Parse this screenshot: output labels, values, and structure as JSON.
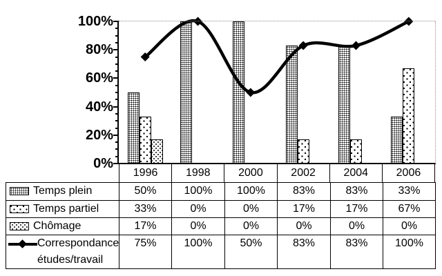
{
  "chart_data": {
    "type": "bar",
    "subtype": "combo-bar-line",
    "title": "",
    "xlabel": "",
    "ylabel": "",
    "categories": [
      "1996",
      "1998",
      "2000",
      "2002",
      "2004",
      "2006"
    ],
    "series": [
      {
        "name": "Temps plein",
        "kind": "bar",
        "pattern": "dense-dots",
        "values": [
          50,
          100,
          100,
          83,
          83,
          33
        ],
        "display": [
          "50%",
          "100%",
          "100%",
          "83%",
          "83%",
          "33%"
        ],
        "label_lines": [
          "Temps plein"
        ]
      },
      {
        "name": "Temps partiel",
        "kind": "bar",
        "pattern": "sparse-specks",
        "values": [
          33,
          0,
          0,
          17,
          17,
          67
        ],
        "display": [
          "33%",
          "0%",
          "0%",
          "17%",
          "17%",
          "67%"
        ],
        "label_lines": [
          "Temps partiel"
        ]
      },
      {
        "name": "Chômage",
        "kind": "bar",
        "pattern": "speckle",
        "values": [
          17,
          0,
          0,
          0,
          0,
          0
        ],
        "display": [
          "17%",
          "0%",
          "0%",
          "0%",
          "0%",
          "0%"
        ],
        "label_lines": [
          "Chômage"
        ]
      },
      {
        "name": "Correspondance études/travail",
        "kind": "line",
        "marker": "diamond",
        "values": [
          75,
          100,
          50,
          83,
          83,
          100
        ],
        "display": [
          "75%",
          "100%",
          "50%",
          "83%",
          "83%",
          "100%"
        ],
        "label_lines": [
          "Correspondance",
          "études/travail"
        ]
      }
    ],
    "ylim": [
      0,
      100
    ],
    "y_tick_labels": [
      "0%",
      "20%",
      "40%",
      "60%",
      "80%",
      "100%"
    ],
    "y_major_step": 20,
    "y_minor_step": 5,
    "grid": "dotted-line-at-100-and-right-frame",
    "legend_position": "table-rows-left",
    "value_suffix": "%",
    "colors": {
      "foreground": "#000000",
      "background": "#ffffff",
      "frame_dotted": "#8c8c8c"
    }
  }
}
